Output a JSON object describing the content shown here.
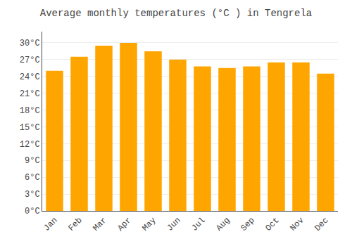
{
  "chart_data": {
    "type": "bar",
    "title": "Average monthly temperatures (°C ) in Tengrela",
    "categories": [
      "Jan",
      "Feb",
      "Mar",
      "Apr",
      "May",
      "Jun",
      "Jul",
      "Aug",
      "Sep",
      "Oct",
      "Nov",
      "Dec"
    ],
    "values": [
      25.0,
      27.5,
      29.5,
      30.0,
      28.5,
      27.0,
      25.8,
      25.5,
      25.8,
      26.5,
      26.5,
      24.5
    ],
    "color": "#FFA500",
    "ylim": [
      0,
      32
    ],
    "yticks": [
      {
        "value": 0,
        "label": "0°C"
      },
      {
        "value": 3,
        "label": "3°C"
      },
      {
        "value": 6,
        "label": "6°C"
      },
      {
        "value": 9,
        "label": "9°C"
      },
      {
        "value": 12,
        "label": "12°C"
      },
      {
        "value": 15,
        "label": "15°C"
      },
      {
        "value": 18,
        "label": "18°C"
      },
      {
        "value": 21,
        "label": "21°C"
      },
      {
        "value": 24,
        "label": "24°C"
      },
      {
        "value": 27,
        "label": "27°C"
      },
      {
        "value": 30,
        "label": "30°C"
      }
    ],
    "grid": true
  }
}
